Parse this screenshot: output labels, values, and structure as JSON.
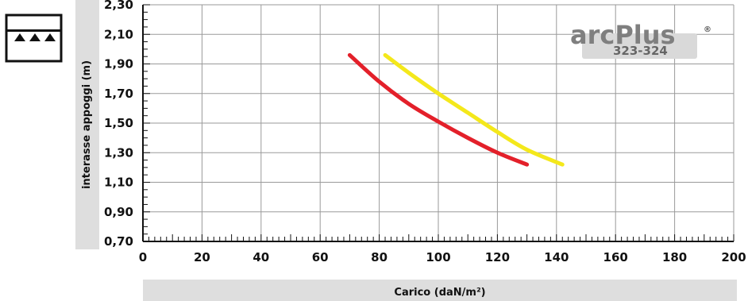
{
  "chart_data": {
    "type": "line",
    "xlabel": "Carico (daN/m²)",
    "ylabel": "interasse appoggi (m)",
    "xlim": [
      0,
      200
    ],
    "ylim": [
      0.7,
      2.3
    ],
    "x_ticks": [
      "0",
      "20",
      "40",
      "60",
      "80",
      "100",
      "120",
      "140",
      "160",
      "180",
      "200"
    ],
    "y_ticks": [
      "0,70",
      "0,90",
      "1,10",
      "1,30",
      "1,50",
      "1,70",
      "1,90",
      "2,10",
      "2,30"
    ],
    "grid": true,
    "series": [
      {
        "color": "#e3202a",
        "points": [
          [
            70,
            1.96
          ],
          [
            80,
            1.78
          ],
          [
            90,
            1.63
          ],
          [
            100,
            1.51
          ],
          [
            110,
            1.4
          ],
          [
            120,
            1.3
          ],
          [
            130,
            1.22
          ]
        ]
      },
      {
        "color": "#f4e81b",
        "points": [
          [
            82,
            1.96
          ],
          [
            90,
            1.84
          ],
          [
            100,
            1.7
          ],
          [
            110,
            1.57
          ],
          [
            120,
            1.44
          ],
          [
            130,
            1.32
          ],
          [
            142,
            1.22
          ]
        ]
      }
    ]
  },
  "logo": {
    "brand_prefix": "arc",
    "brand_suffix": "Plus",
    "registered": "®",
    "model": "323-324",
    "brand_color": "#7f7f7f"
  },
  "icon": {
    "name": "support-rail-icon"
  }
}
